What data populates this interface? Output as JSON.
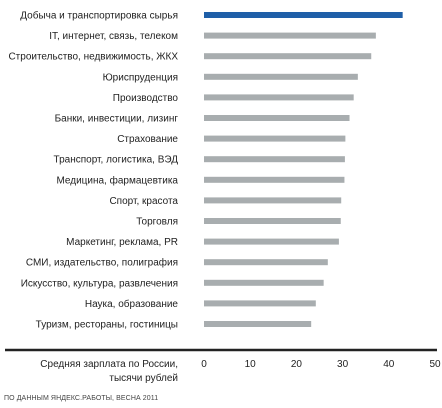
{
  "chart_data": {
    "type": "bar",
    "orientation": "horizontal",
    "title": "",
    "categories": [
      "Добыча и транспортировка сырья",
      "IT, интернет, связь, телеком",
      "Строительство, недвижимость, ЖКХ",
      "Юриспруденция",
      "Производство",
      "Банки, инвестиции, лизинг",
      "Страхование",
      "Транспорт, логистика, ВЭД",
      "Медицина, фармацевтика",
      "Спорт, красота",
      "Торговля",
      "Маркетинг, реклама, PR",
      "СМИ, издательство, полиграфия",
      "Искусство, культура, развлечения",
      "Наука, образование",
      "Туризм, рестораны, гостиницы"
    ],
    "values": [
      43,
      37.2,
      36.2,
      33.3,
      32.4,
      31.5,
      30.6,
      30.5,
      30.4,
      29.7,
      29.6,
      29.2,
      26.8,
      25.9,
      24.2,
      23.2
    ],
    "highlight_index": 0,
    "xlabel_lines": [
      "Средняя зарплата по России,",
      "тысячи рублей"
    ],
    "xlim": [
      0,
      50
    ],
    "xticks": [
      "0",
      "10",
      "20",
      "30",
      "40",
      "50"
    ],
    "grid": false,
    "colors": {
      "highlight": "#1f5fa8",
      "bar": "#a8adaf",
      "axis": "#222222"
    }
  },
  "source": "ПО ДАННЫМ ЯНДЕКС.РАБОТЫ, ВЕСНА 2011"
}
